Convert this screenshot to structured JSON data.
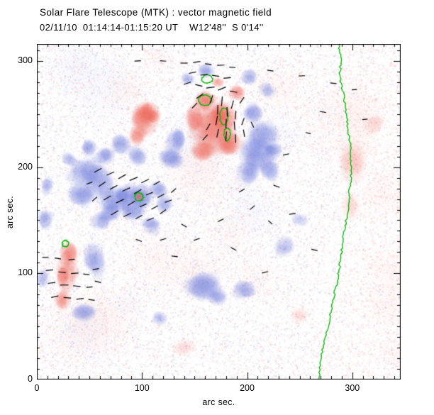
{
  "header": {
    "title": "Solar Flare Telescope (MTK) : vector magnetic field",
    "subtitle": "02/11/10  01:14:14-01:15:20 UT    W12'48''  S 0'14''"
  },
  "chart_data": {
    "type": "heatmap",
    "title": "Solar Flare Telescope (MTK) : vector magnetic field",
    "subtitle": "02/11/10  01:14:14-01:15:20 UT    W12'48''  S 0'14''",
    "xlabel": "arc sec.",
    "ylabel": "arc sec.",
    "xlim": [
      0,
      346
    ],
    "ylim": [
      0,
      316
    ],
    "xticks": [
      0,
      100,
      200,
      300
    ],
    "yticks": [
      0,
      100,
      200,
      300
    ],
    "minor_tick_step": 10,
    "grid": false,
    "colors": {
      "positive_polarity": "#eb5546",
      "negative_polarity": "#5f6ed7",
      "positive_speckle": "#f06e5a",
      "negative_speckle": "#7382e1",
      "contour_green": "#00b400",
      "vector_black": "#000000",
      "frame": "#000000",
      "background": "#ffffff"
    },
    "noise": {
      "seed": 20110211,
      "count": 24000,
      "red_bias_beyond_limb": 0.78
    },
    "blobs": [
      [
        47,
        195,
        16,
        14,
        "b",
        0.5
      ],
      [
        42,
        176,
        14,
        12,
        "b",
        0.45
      ],
      [
        60,
        186,
        14,
        17,
        "b",
        0.42
      ],
      [
        65,
        210,
        10,
        9,
        "b",
        0.42
      ],
      [
        50,
        218,
        8,
        8,
        "b",
        0.38
      ],
      [
        80,
        222,
        10,
        10,
        "b",
        0.4
      ],
      [
        95,
        212,
        9,
        9,
        "b",
        0.38
      ],
      [
        75,
        170,
        15,
        13,
        "b",
        0.45
      ],
      [
        90,
        160,
        13,
        11,
        "b",
        0.45
      ],
      [
        100,
        172,
        12,
        13,
        "b",
        0.5
      ],
      [
        85,
        175,
        10,
        10,
        "b",
        0.45
      ],
      [
        70,
        158,
        10,
        9,
        "b",
        0.4
      ],
      [
        115,
        178,
        9,
        9,
        "b",
        0.38
      ],
      [
        120,
        165,
        8,
        8,
        "b",
        0.33
      ],
      [
        108,
        145,
        9,
        8,
        "b",
        0.38
      ],
      [
        60,
        150,
        10,
        8,
        "b",
        0.33
      ],
      [
        30,
        208,
        8,
        6,
        "b",
        0.3
      ],
      [
        10,
        182,
        6,
        9,
        "b",
        0.32
      ],
      [
        128,
        209,
        12,
        12,
        "b",
        0.48
      ],
      [
        131,
        223,
        10,
        12,
        "b",
        0.42
      ],
      [
        208,
        212,
        18,
        16,
        "b",
        0.5
      ],
      [
        215,
        229,
        14,
        13,
        "b",
        0.46
      ],
      [
        200,
        196,
        12,
        12,
        "b",
        0.42
      ],
      [
        222,
        197,
        10,
        10,
        "b",
        0.36
      ],
      [
        205,
        250,
        10,
        10,
        "b",
        0.42
      ],
      [
        225,
        215,
        9,
        9,
        "b",
        0.36
      ],
      [
        160,
        290,
        8,
        7,
        "b",
        0.42
      ],
      [
        143,
        283,
        7,
        6,
        "b",
        0.32
      ],
      [
        202,
        285,
        9,
        8,
        "b",
        0.36
      ],
      [
        218,
        273,
        8,
        7,
        "b",
        0.3
      ],
      [
        55,
        114,
        10,
        16,
        "b",
        0.42
      ],
      [
        45,
        62,
        12,
        9,
        "b",
        0.38
      ],
      [
        8,
        150,
        7,
        10,
        "b",
        0.36
      ],
      [
        5,
        95,
        6,
        9,
        "b",
        0.3
      ],
      [
        157,
        88,
        16,
        14,
        "b",
        0.46
      ],
      [
        172,
        78,
        10,
        9,
        "b",
        0.36
      ],
      [
        197,
        85,
        11,
        9,
        "b",
        0.4
      ],
      [
        117,
        58,
        8,
        7,
        "b",
        0.3
      ],
      [
        235,
        125,
        11,
        9,
        "b",
        0.3
      ],
      [
        250,
        150,
        8,
        7,
        "b",
        0.2
      ],
      [
        103,
        243,
        14,
        16,
        "r",
        0.55
      ],
      [
        108,
        252,
        10,
        10,
        "r",
        0.5
      ],
      [
        96,
        231,
        9,
        9,
        "r",
        0.42
      ],
      [
        168,
        235,
        22,
        24,
        "r",
        0.5
      ],
      [
        178,
        248,
        14,
        14,
        "r",
        0.55
      ],
      [
        160,
        262,
        10,
        10,
        "r",
        0.55
      ],
      [
        182,
        222,
        12,
        12,
        "r",
        0.5
      ],
      [
        158,
        215,
        12,
        10,
        "r",
        0.45
      ],
      [
        150,
        246,
        10,
        12,
        "r",
        0.45
      ],
      [
        190,
        270,
        8,
        8,
        "r",
        0.42
      ],
      [
        172,
        280,
        6,
        5,
        "r",
        0.3
      ],
      [
        97,
        172,
        5,
        5,
        "r",
        0.42
      ],
      [
        28,
        96,
        10,
        16,
        "r",
        0.55
      ],
      [
        30,
        119,
        9,
        12,
        "r",
        0.5
      ],
      [
        25,
        76,
        8,
        10,
        "r",
        0.4
      ],
      [
        300,
        200,
        14,
        20,
        "r",
        0.16
      ],
      [
        298,
        165,
        10,
        12,
        "r",
        0.12
      ],
      [
        140,
        30,
        12,
        8,
        "r",
        0.12
      ],
      [
        250,
        60,
        10,
        8,
        "r",
        0.1
      ],
      [
        320,
        240,
        10,
        10,
        "r",
        0.12
      ]
    ],
    "green_contour_rings": [
      [
        160,
        263,
        6,
        5
      ],
      [
        178,
        248,
        4,
        8
      ],
      [
        181,
        231,
        3,
        6
      ],
      [
        97,
        172,
        4,
        4
      ],
      [
        27,
        128,
        3,
        3
      ],
      [
        162,
        283,
        5,
        4
      ]
    ],
    "limb_line": [
      [
        287,
        316
      ],
      [
        289,
        300
      ],
      [
        288,
        285
      ],
      [
        292,
        268
      ],
      [
        294,
        252
      ],
      [
        296,
        237
      ],
      [
        298,
        222
      ],
      [
        299,
        206
      ],
      [
        299,
        190
      ],
      [
        297,
        175
      ],
      [
        296,
        160
      ],
      [
        294,
        148
      ],
      [
        292,
        136
      ],
      [
        290,
        122
      ],
      [
        288,
        108
      ],
      [
        286,
        95
      ],
      [
        283,
        80
      ],
      [
        280,
        65
      ],
      [
        277,
        50
      ],
      [
        273,
        34
      ],
      [
        270,
        18
      ],
      [
        268,
        0
      ]
    ],
    "vectors": [
      [
        140,
        298,
        0,
        7
      ],
      [
        152,
        299,
        8,
        7
      ],
      [
        163,
        297,
        -6,
        6
      ],
      [
        175,
        296,
        2,
        7
      ],
      [
        186,
        294,
        -4,
        6
      ],
      [
        148,
        289,
        12,
        7
      ],
      [
        159,
        287,
        4,
        7
      ],
      [
        170,
        286,
        -8,
        7
      ],
      [
        181,
        284,
        6,
        7
      ],
      [
        143,
        279,
        18,
        7
      ],
      [
        154,
        277,
        -14,
        7
      ],
      [
        165,
        275,
        8,
        8
      ],
      [
        176,
        274,
        22,
        8
      ],
      [
        187,
        271,
        -10,
        7
      ],
      [
        150,
        258,
        45,
        7
      ],
      [
        155,
        267,
        35,
        8
      ],
      [
        166,
        264,
        70,
        8
      ],
      [
        176,
        262,
        85,
        9
      ],
      [
        186,
        259,
        75,
        8
      ],
      [
        195,
        263,
        55,
        7
      ],
      [
        172,
        254,
        88,
        9
      ],
      [
        181,
        252,
        92,
        9
      ],
      [
        189,
        249,
        85,
        8
      ],
      [
        171,
        244,
        80,
        9
      ],
      [
        180,
        241,
        88,
        9
      ],
      [
        188,
        239,
        95,
        8
      ],
      [
        196,
        243,
        70,
        7
      ],
      [
        172,
        232,
        78,
        8
      ],
      [
        180,
        229,
        86,
        9
      ],
      [
        189,
        227,
        92,
        8
      ],
      [
        163,
        238,
        60,
        7
      ],
      [
        160,
        228,
        48,
        7
      ],
      [
        197,
        232,
        100,
        7
      ],
      [
        205,
        240,
        115,
        6
      ],
      [
        58,
        197,
        28,
        8
      ],
      [
        70,
        194,
        24,
        8
      ],
      [
        81,
        191,
        30,
        8
      ],
      [
        92,
        189,
        22,
        8
      ],
      [
        103,
        187,
        26,
        8
      ],
      [
        114,
        185,
        30,
        7
      ],
      [
        62,
        184,
        34,
        8
      ],
      [
        73,
        181,
        28,
        8
      ],
      [
        85,
        179,
        24,
        8
      ],
      [
        96,
        177,
        30,
        8
      ],
      [
        107,
        175,
        22,
        7
      ],
      [
        118,
        173,
        28,
        7
      ],
      [
        67,
        171,
        30,
        8
      ],
      [
        79,
        168,
        26,
        8
      ],
      [
        90,
        166,
        30,
        8
      ],
      [
        101,
        164,
        24,
        7
      ],
      [
        112,
        162,
        28,
        7
      ],
      [
        74,
        157,
        30,
        8
      ],
      [
        86,
        155,
        24,
        8
      ],
      [
        97,
        153,
        28,
        7
      ],
      [
        108,
        151,
        22,
        7
      ],
      [
        125,
        168,
        20,
        7
      ],
      [
        120,
        158,
        35,
        7
      ],
      [
        130,
        178,
        40,
        6
      ],
      [
        55,
        170,
        40,
        6
      ],
      [
        50,
        185,
        20,
        6
      ],
      [
        12,
        103,
        5,
        7
      ],
      [
        24,
        101,
        -6,
        7
      ],
      [
        36,
        100,
        4,
        7
      ],
      [
        47,
        99,
        -8,
        6
      ],
      [
        14,
        91,
        8,
        7
      ],
      [
        26,
        89,
        0,
        8
      ],
      [
        38,
        88,
        -6,
        7
      ],
      [
        50,
        87,
        5,
        6
      ],
      [
        17,
        78,
        12,
        7
      ],
      [
        29,
        77,
        -4,
        7
      ],
      [
        41,
        76,
        6,
        7
      ],
      [
        52,
        75,
        -8,
        6
      ],
      [
        58,
        92,
        -14,
        6
      ],
      [
        56,
        104,
        10,
        6
      ],
      [
        8,
        115,
        0,
        6
      ],
      [
        20,
        114,
        -10,
        6
      ],
      [
        33,
        113,
        6,
        6
      ],
      [
        120,
        300,
        -4,
        6
      ],
      [
        96,
        300,
        3,
        6
      ],
      [
        222,
        291,
        -8,
        6
      ],
      [
        252,
        286,
        2,
        6
      ],
      [
        282,
        279,
        -6,
        6
      ],
      [
        302,
        273,
        4,
        5
      ],
      [
        228,
        182,
        -18,
        6
      ],
      [
        243,
        156,
        8,
        6
      ],
      [
        264,
        122,
        -12,
        6
      ],
      [
        217,
        101,
        14,
        6
      ],
      [
        187,
        123,
        -28,
        6
      ],
      [
        152,
        132,
        18,
        6
      ],
      [
        131,
        116,
        -6,
        6
      ],
      [
        97,
        131,
        -20,
        6
      ],
      [
        272,
        252,
        -10,
        6
      ],
      [
        205,
        162,
        40,
        6
      ],
      [
        237,
        212,
        12,
        6
      ],
      [
        258,
        232,
        -15,
        5
      ],
      [
        312,
        245,
        5,
        5
      ],
      [
        175,
        150,
        25,
        6
      ],
      [
        140,
        145,
        -30,
        6
      ],
      [
        120,
        132,
        15,
        6
      ],
      [
        222,
        148,
        -40,
        5
      ],
      [
        195,
        178,
        30,
        6
      ]
    ]
  }
}
